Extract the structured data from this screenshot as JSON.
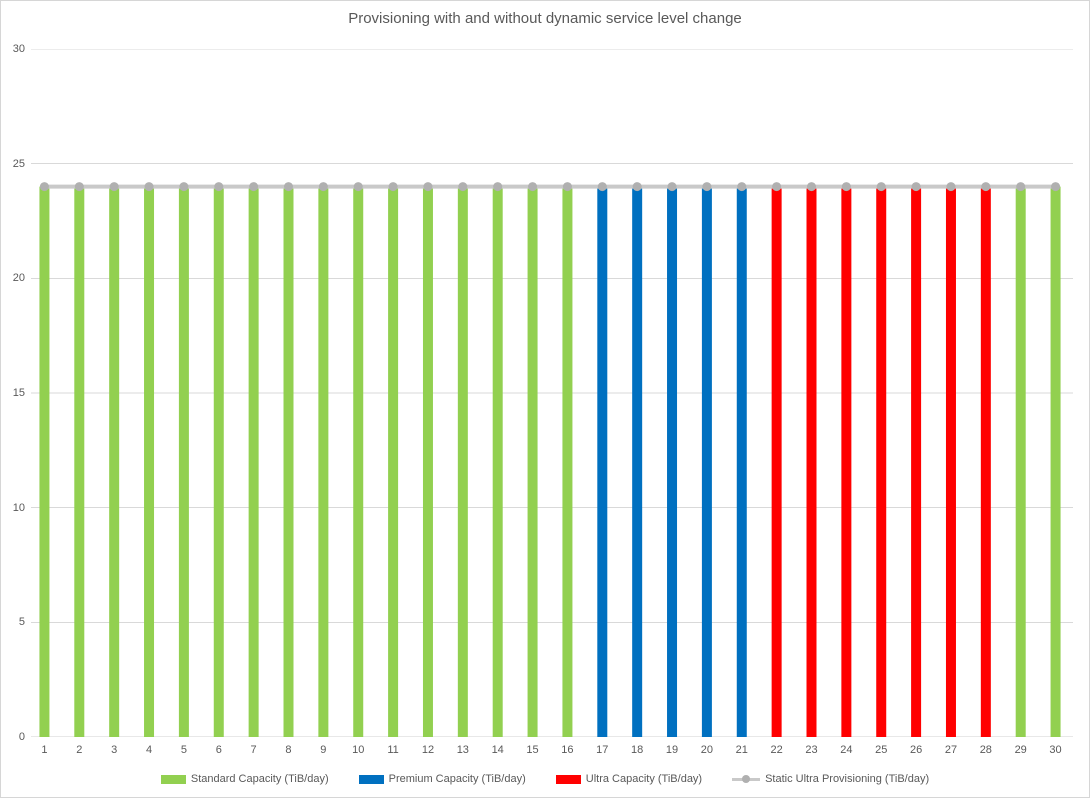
{
  "chart_data": {
    "type": "bar",
    "title": "Provisioning with and without dynamic service level change",
    "categories": [
      "1",
      "2",
      "3",
      "4",
      "5",
      "6",
      "7",
      "8",
      "9",
      "10",
      "11",
      "12",
      "13",
      "14",
      "15",
      "16",
      "17",
      "18",
      "19",
      "20",
      "21",
      "22",
      "23",
      "24",
      "25",
      "26",
      "27",
      "28",
      "29",
      "30"
    ],
    "ylim": [
      0,
      30
    ],
    "yticks": [
      0,
      5,
      10,
      15,
      20,
      25,
      30
    ],
    "grid": true,
    "legend_position": "bottom",
    "colors": {
      "gridline": "#d9d9d9",
      "axis_line": "#d0d0d0",
      "text": "#595959"
    },
    "series": [
      {
        "name": "Standard Capacity (TiB/day)",
        "type": "bar",
        "color": "#92D050",
        "values": [
          24,
          24,
          24,
          24,
          24,
          24,
          24,
          24,
          24,
          24,
          24,
          24,
          24,
          24,
          24,
          24,
          null,
          null,
          null,
          null,
          null,
          null,
          null,
          null,
          null,
          null,
          null,
          null,
          24,
          24
        ]
      },
      {
        "name": "Premium Capacity (TiB/day)",
        "type": "bar",
        "color": "#0070C0",
        "values": [
          null,
          null,
          null,
          null,
          null,
          null,
          null,
          null,
          null,
          null,
          null,
          null,
          null,
          null,
          null,
          null,
          24,
          24,
          24,
          24,
          24,
          null,
          null,
          null,
          null,
          null,
          null,
          null,
          null,
          null
        ]
      },
      {
        "name": "Ultra Capacity (TiB/day)",
        "type": "bar",
        "color": "#FF0000",
        "values": [
          null,
          null,
          null,
          null,
          null,
          null,
          null,
          null,
          null,
          null,
          null,
          null,
          null,
          null,
          null,
          null,
          null,
          null,
          null,
          null,
          null,
          24,
          24,
          24,
          24,
          24,
          24,
          24,
          null,
          null
        ]
      },
      {
        "name": "Static Ultra Provisioning (TiB/day)",
        "type": "line",
        "color": "#C9C9C9",
        "marker_color": "#B0B0B0",
        "values": [
          24,
          24,
          24,
          24,
          24,
          24,
          24,
          24,
          24,
          24,
          24,
          24,
          24,
          24,
          24,
          24,
          24,
          24,
          24,
          24,
          24,
          24,
          24,
          24,
          24,
          24,
          24,
          24,
          24,
          24
        ]
      }
    ]
  }
}
